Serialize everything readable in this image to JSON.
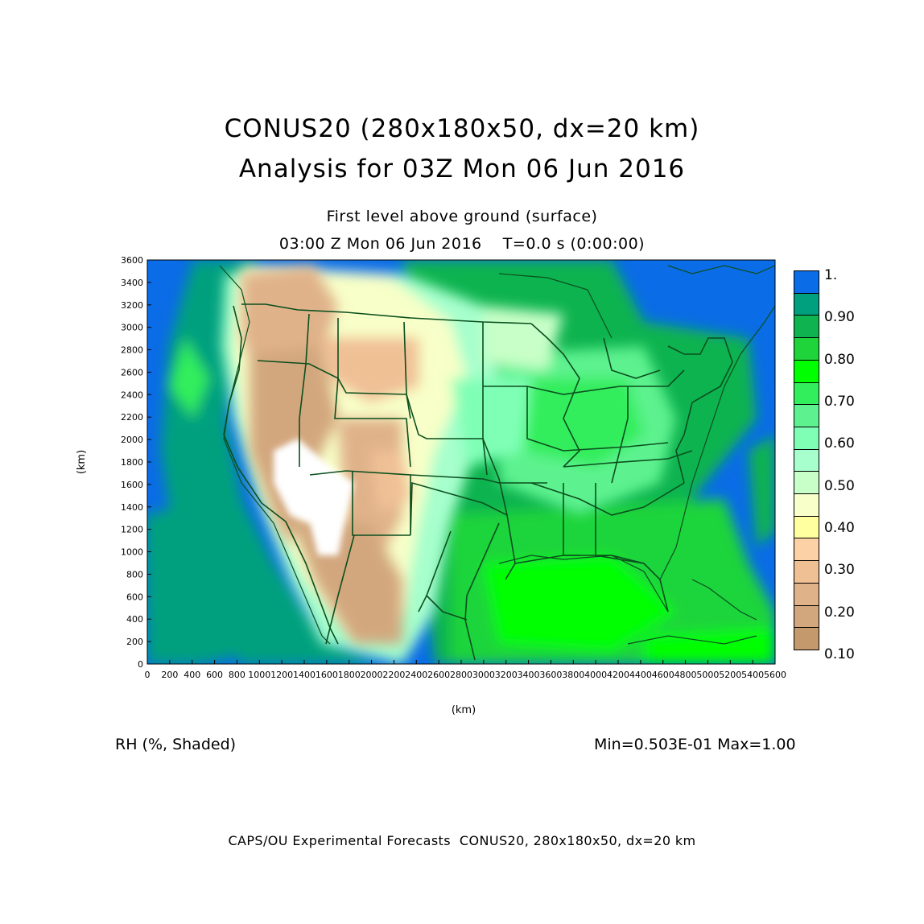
{
  "header": {
    "title_line1": "CONUS20 (280x180x50, dx=20 km)",
    "title_line2": "Analysis for 03Z Mon 06 Jun 2016",
    "subtitle_line1": "First level above ground (surface)",
    "subtitle_line2": "03:00 Z Mon 06 Jun 2016    T=0.0 s (0:00:00)"
  },
  "map": {
    "field": "RH (%, Shaded)",
    "stats": "Min=0.503E-01 Max=1.00",
    "x_axis_label": "(km)",
    "y_axis_label": "(km)",
    "x_ticks": [
      "0",
      "200",
      "400",
      "600",
      "800",
      "1000",
      "1200",
      "1400",
      "1600",
      "1800",
      "2000",
      "2200",
      "2400",
      "2600",
      "2800",
      "3000",
      "3200",
      "3400",
      "3600",
      "3800",
      "4000",
      "4200",
      "4400",
      "4600",
      "4800",
      "5000",
      "5200",
      "5400",
      "5600"
    ],
    "y_ticks": [
      "0",
      "200",
      "400",
      "600",
      "800",
      "1000",
      "1200",
      "1400",
      "1600",
      "1800",
      "2000",
      "2200",
      "2400",
      "2600",
      "2800",
      "3000",
      "3200",
      "3400",
      "3600"
    ],
    "x_range": [
      0,
      5600
    ],
    "y_range": [
      0,
      3600
    ]
  },
  "colorbar": {
    "colors": [
      "#c49a6c",
      "#d3a77e",
      "#e0b28a",
      "#f0c095",
      "#fdd1a6",
      "#ffff9f",
      "#f8ffc8",
      "#c8ffc8",
      "#a6ffcc",
      "#7fffb6",
      "#5df28f",
      "#32ee5c",
      "#00ff00",
      "#1fd43a",
      "#0fb350",
      "#00a07e",
      "#0a6ce6"
    ],
    "labels": [
      "1.",
      "0.90",
      "0.80",
      "0.70",
      "0.60",
      "0.50",
      "0.40",
      "0.30",
      "0.20",
      "0.10"
    ]
  },
  "footer": {
    "text": "CAPS/OU Experimental Forecasts  CONUS20, 280x180x50, dx=20 km"
  }
}
